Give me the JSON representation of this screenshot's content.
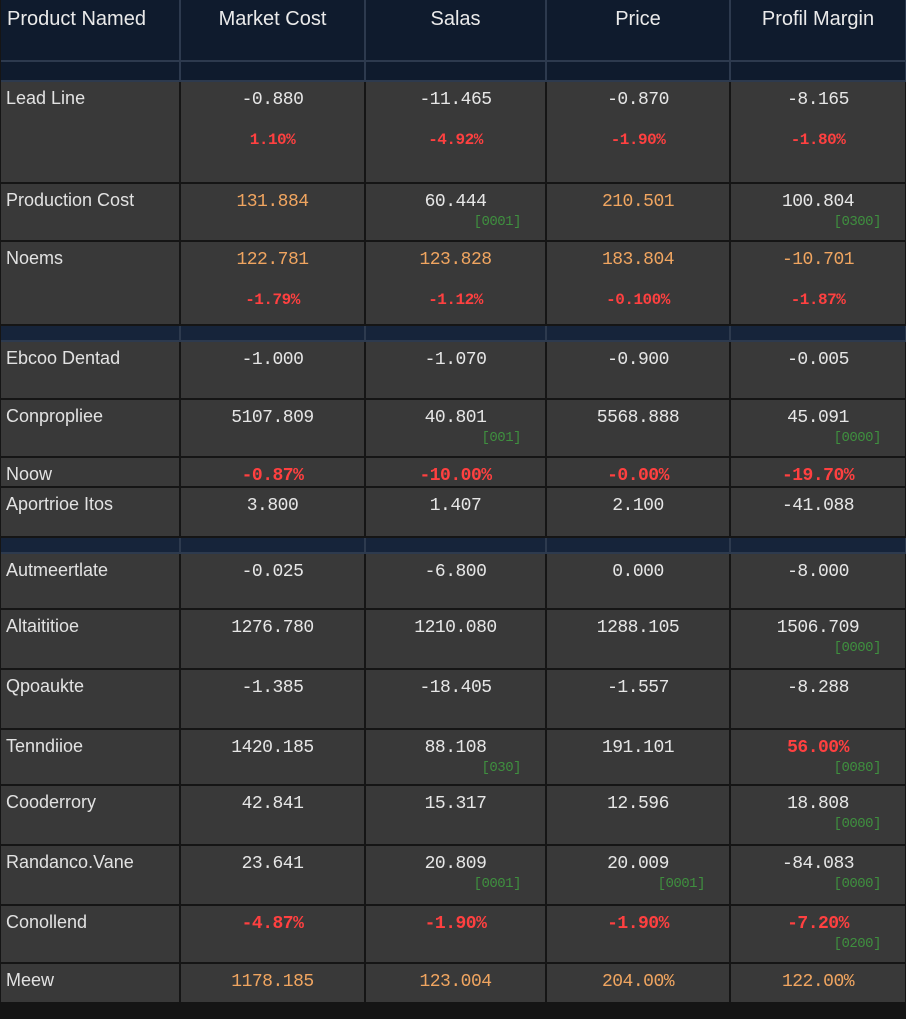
{
  "table": {
    "headers": [
      "Product Named",
      "Market Cost",
      "Salas",
      "Price",
      "Profil Margin"
    ],
    "groups": [
      {
        "rows": [
          {
            "label": "Lead Line",
            "cells": [
              {
                "main": "-0.880",
                "sub": "1.10%",
                "sub_kind": "red"
              },
              {
                "main": "-11.465",
                "sub": "-4.92%",
                "sub_kind": "red"
              },
              {
                "main": "-0.870",
                "sub": "-1.90%",
                "sub_kind": "red"
              },
              {
                "main": "-8.165",
                "sub": "-1.80%",
                "sub_kind": "red"
              }
            ]
          },
          {
            "label": "Production Cost",
            "cells": [
              {
                "main": "131.884",
                "tone": "orange"
              },
              {
                "main": "60.444",
                "sub": "[0001]",
                "sub_kind": "green"
              },
              {
                "main": "210.501",
                "tone": "orange"
              },
              {
                "main": "100.804",
                "sub": "[0300]",
                "sub_kind": "green"
              }
            ]
          },
          {
            "label": "Noems",
            "cells": [
              {
                "main": "122.781",
                "tone": "orange",
                "sub": "-1.79%",
                "sub_kind": "red"
              },
              {
                "main": "123.828",
                "tone": "orange",
                "sub": "-1.12%",
                "sub_kind": "red"
              },
              {
                "main": "183.804",
                "tone": "orange",
                "sub": "-0.100%",
                "sub_kind": "red"
              },
              {
                "main": "-10.701",
                "tone": "orange",
                "sub": "-1.87%",
                "sub_kind": "red"
              }
            ]
          }
        ]
      },
      {
        "rows": [
          {
            "label": "Ebcoo Dentad",
            "cells": [
              {
                "main": "-1.000"
              },
              {
                "main": "-1.070"
              },
              {
                "main": "-0.900"
              },
              {
                "main": "-0.005"
              }
            ]
          },
          {
            "label": "Conpropliee",
            "cells": [
              {
                "main": "5107.809"
              },
              {
                "main": "40.801",
                "sub": "[001]",
                "sub_kind": "green"
              },
              {
                "main": "5568.888"
              },
              {
                "main": "45.091",
                "sub": "[0000]",
                "sub_kind": "green"
              }
            ]
          },
          {
            "label": "Noow",
            "cells": [
              {
                "main": "-0.87%",
                "tone": "red"
              },
              {
                "main": "-10.00%",
                "tone": "red"
              },
              {
                "main": "-0.00%",
                "tone": "red"
              },
              {
                "main": "-19.70%",
                "tone": "red"
              }
            ]
          },
          {
            "label": "Aportrioe Itos",
            "cells": [
              {
                "main": "3.800"
              },
              {
                "main": "1.407"
              },
              {
                "main": "2.100"
              },
              {
                "main": "-41.088"
              }
            ]
          }
        ]
      },
      {
        "rows": [
          {
            "label": "Autmeertlate",
            "cells": [
              {
                "main": "-0.025"
              },
              {
                "main": "-6.800"
              },
              {
                "main": "0.000"
              },
              {
                "main": "-8.000"
              }
            ]
          },
          {
            "label": "Altaititioe",
            "cells": [
              {
                "main": "1276.780"
              },
              {
                "main": "1210.080"
              },
              {
                "main": "1288.105"
              },
              {
                "main": "1506.709",
                "sub": "[0000]",
                "sub_kind": "green"
              }
            ]
          },
          {
            "label": "Qpoaukte",
            "cells": [
              {
                "main": "-1.385"
              },
              {
                "main": "-18.405"
              },
              {
                "main": "-1.557"
              },
              {
                "main": "-8.288"
              }
            ]
          },
          {
            "label": "Tenndiioe",
            "cells": [
              {
                "main": "1420.185"
              },
              {
                "main": "88.108",
                "sub": "[030]",
                "sub_kind": "green"
              },
              {
                "main": "191.101"
              },
              {
                "main": "56.00%",
                "tone": "red",
                "sub": "[0080]",
                "sub_kind": "green"
              }
            ]
          },
          {
            "label": "Cooderrory",
            "cells": [
              {
                "main": "42.841"
              },
              {
                "main": "15.317"
              },
              {
                "main": "12.596"
              },
              {
                "main": "18.808",
                "sub": "[0000]",
                "sub_kind": "green"
              }
            ]
          },
          {
            "label": "Randanco.Vane",
            "cells": [
              {
                "main": "23.641"
              },
              {
                "main": "20.809",
                "sub": "[0001]",
                "sub_kind": "green"
              },
              {
                "main": "20.009",
                "sub": "[0001]",
                "sub_kind": "green"
              },
              {
                "main": "-84.083",
                "sub": "[0000]",
                "sub_kind": "green"
              }
            ]
          },
          {
            "label": "Conollend",
            "cells": [
              {
                "main": "-4.87%",
                "tone": "red"
              },
              {
                "main": "-1.90%",
                "tone": "red"
              },
              {
                "main": "-1.90%",
                "tone": "red"
              },
              {
                "main": "-7.20%",
                "tone": "red",
                "sub": "[0200]",
                "sub_kind": "green"
              }
            ]
          },
          {
            "label": "Meew",
            "cells": [
              {
                "main": "1178.185",
                "tone": "orange"
              },
              {
                "main": "123.004",
                "tone": "orange"
              },
              {
                "main": "204.00%",
                "tone": "orange"
              },
              {
                "main": "122.00%",
                "tone": "orange"
              }
            ]
          }
        ]
      }
    ]
  }
}
